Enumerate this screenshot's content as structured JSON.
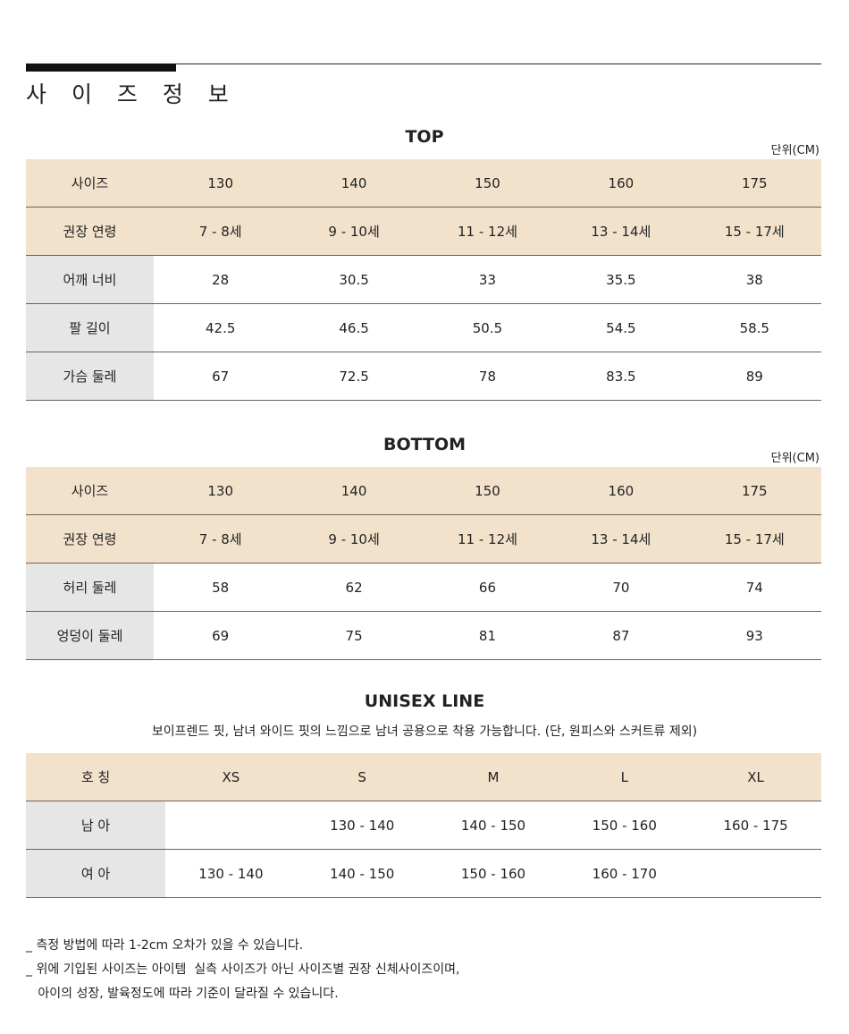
{
  "title": "사 이 즈 정 보",
  "top": {
    "title": "TOP",
    "unit": "단위(CM)",
    "rows": [
      {
        "header": true,
        "cells": [
          "사이즈",
          "130",
          "140",
          "150",
          "160",
          "175"
        ]
      },
      {
        "header": true,
        "cells": [
          "권장 연령",
          "7 - 8세",
          "9 - 10세",
          "11 - 12세",
          "13 - 14세",
          "15 - 17세"
        ]
      },
      {
        "cells": [
          "어깨 너비",
          "28",
          "30.5",
          "33",
          "35.5",
          "38"
        ]
      },
      {
        "cells": [
          "팔 길이",
          "42.5",
          "46.5",
          "50.5",
          "54.5",
          "58.5"
        ]
      },
      {
        "cells": [
          "가슴 둘레",
          "67",
          "72.5",
          "78",
          "83.5",
          "89"
        ]
      }
    ]
  },
  "bottom": {
    "title": "BOTTOM",
    "unit": "단위(CM)",
    "rows": [
      {
        "header": true,
        "cells": [
          "사이즈",
          "130",
          "140",
          "150",
          "160",
          "175"
        ]
      },
      {
        "header": true,
        "cells": [
          "권장 연령",
          "7 - 8세",
          "9 - 10세",
          "11 - 12세",
          "13 - 14세",
          "15 - 17세"
        ]
      },
      {
        "cells": [
          "허리 둘레",
          "58",
          "62",
          "66",
          "70",
          "74"
        ]
      },
      {
        "cells": [
          "엉덩이 둘레",
          "69",
          "75",
          "81",
          "87",
          "93"
        ]
      }
    ]
  },
  "unisex": {
    "title": "UNISEX LINE",
    "description": "보이프렌드 핏, 남녀 와이드 핏의 느낌으로 남녀 공용으로 착용 가능합니다. (단, 원피스와 스커트류 제외)",
    "rows": [
      {
        "header": true,
        "cells": [
          "호 칭",
          "XS",
          "S",
          "M",
          "L",
          "XL"
        ]
      },
      {
        "cells": [
          "남 아",
          "",
          "130 - 140",
          "140 - 150",
          "150 - 160",
          "160 - 175"
        ]
      },
      {
        "cells": [
          "여 아",
          "130 - 140",
          "140 - 150",
          "150 - 160",
          "160 - 170",
          ""
        ]
      }
    ]
  },
  "notes": [
    "_ 측정 방법에 따라 1-2cm 오차가 있을 수 있습니다.",
    "_ 위에 기입된 사이즈는 아이템  실측 사이즈가 아닌 사이즈별 권장 신체사이즈이며,",
    "   아이의 성장, 발육정도에 따라 기준이 달라질 수 있습니다."
  ],
  "colors": {
    "header_bg": "#f2e2cc",
    "label_bg": "#e6e6e6",
    "rule": "#6e6259"
  }
}
